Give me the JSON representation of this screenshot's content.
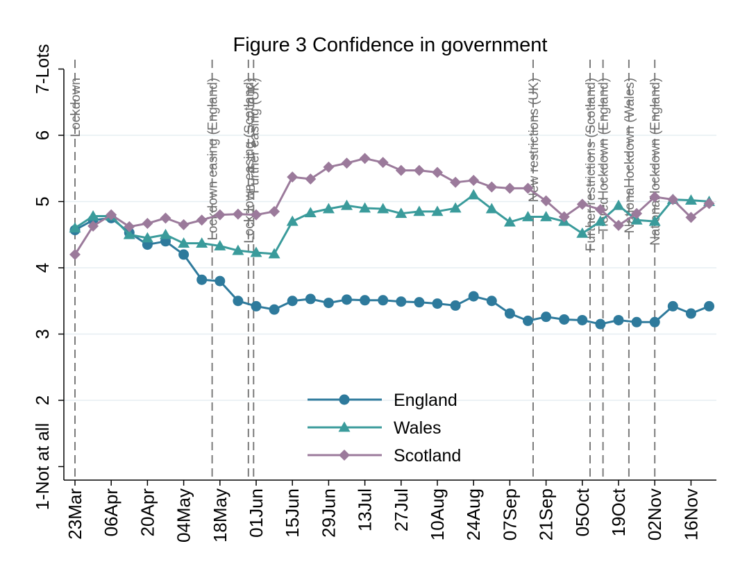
{
  "chart_data": {
    "type": "line",
    "title": "Figure 3 Confidence in government",
    "xlabel": "",
    "ylabel": "",
    "x_ticks": [
      {
        "day": 0,
        "label": "23Mar"
      },
      {
        "day": 14,
        "label": "06Apr"
      },
      {
        "day": 28,
        "label": "20Apr"
      },
      {
        "day": 42,
        "label": "04May"
      },
      {
        "day": 56,
        "label": "18May"
      },
      {
        "day": 70,
        "label": "01Jun"
      },
      {
        "day": 84,
        "label": "15Jun"
      },
      {
        "day": 98,
        "label": "29Jun"
      },
      {
        "day": 112,
        "label": "13Jul"
      },
      {
        "day": 126,
        "label": "27Jul"
      },
      {
        "day": 140,
        "label": "10Aug"
      },
      {
        "day": 154,
        "label": "24Aug"
      },
      {
        "day": 168,
        "label": "07Sep"
      },
      {
        "day": 182,
        "label": "21Sep"
      },
      {
        "day": 196,
        "label": "05Oct"
      },
      {
        "day": 210,
        "label": "19Oct"
      },
      {
        "day": 224,
        "label": "02Nov"
      },
      {
        "day": 238,
        "label": "16Nov"
      }
    ],
    "y_ticks": [
      {
        "value": 1,
        "label": "1-Not at all"
      },
      {
        "value": 2,
        "label": "2"
      },
      {
        "value": 3,
        "label": "3"
      },
      {
        "value": 4,
        "label": "4"
      },
      {
        "value": 5,
        "label": "5"
      },
      {
        "value": 6,
        "label": "6"
      },
      {
        "value": 7,
        "label": "7-Lots"
      }
    ],
    "xlim": [
      0,
      250
    ],
    "ylim": [
      1,
      7
    ],
    "grid": true,
    "legend_position": "bottom-center",
    "x": [
      0,
      7,
      14,
      21,
      28,
      35,
      42,
      49,
      56,
      63,
      70,
      77,
      84,
      91,
      98,
      105,
      112,
      119,
      126,
      133,
      140,
      147,
      154,
      161,
      168,
      175,
      182,
      189,
      196,
      203,
      210,
      217,
      224,
      231,
      238,
      245
    ],
    "series": [
      {
        "name": "England",
        "color": "#2e7a9c",
        "marker": "circle",
        "values": [
          4.57,
          4.72,
          4.75,
          4.53,
          4.35,
          4.4,
          4.2,
          3.82,
          3.8,
          3.5,
          3.42,
          3.37,
          3.5,
          3.53,
          3.47,
          3.52,
          3.51,
          3.51,
          3.49,
          3.48,
          3.46,
          3.43,
          3.57,
          3.5,
          3.31,
          3.2,
          3.26,
          3.22,
          3.21,
          3.15,
          3.21,
          3.18,
          3.18,
          3.42,
          3.31,
          3.42
        ]
      },
      {
        "name": "Wales",
        "color": "#3a9b9b",
        "marker": "triangle",
        "values": [
          4.6,
          4.78,
          4.78,
          4.5,
          4.45,
          4.5,
          4.37,
          4.37,
          4.33,
          4.26,
          4.23,
          4.21,
          4.7,
          4.83,
          4.89,
          4.94,
          4.9,
          4.89,
          4.82,
          4.85,
          4.85,
          4.9,
          5.1,
          4.89,
          4.69,
          4.77,
          4.77,
          4.7,
          4.52,
          4.7,
          4.94,
          4.72,
          4.7,
          5.03,
          5.02,
          5.0
        ]
      },
      {
        "name": "Scotland",
        "color": "#9b7a9b",
        "marker": "diamond",
        "values": [
          4.2,
          4.63,
          4.8,
          4.62,
          4.67,
          4.75,
          4.65,
          4.72,
          4.8,
          4.81,
          4.8,
          4.85,
          5.37,
          5.34,
          5.52,
          5.58,
          5.65,
          5.59,
          5.47,
          5.47,
          5.44,
          5.29,
          5.32,
          5.22,
          5.2,
          5.2,
          5.01,
          4.77,
          4.96,
          4.88,
          4.64,
          4.82,
          5.07,
          5.03,
          4.76,
          4.97
        ]
      }
    ],
    "events": [
      {
        "day": 0,
        "label": "Lockdown"
      },
      {
        "day": 53,
        "label": "Lockdown easing (England)"
      },
      {
        "day": 67,
        "label": "Lockdown easing (Scotland)"
      },
      {
        "day": 69,
        "label": "Further easing (UK)"
      },
      {
        "day": 177,
        "label": "New restrictions (UK)"
      },
      {
        "day": 199,
        "label": "Further restrictions (Scotland)"
      },
      {
        "day": 204,
        "label": "Tiered lockdown (England)"
      },
      {
        "day": 214,
        "label": "National lockdown (Wales)"
      },
      {
        "day": 224,
        "label": "National lockdown (England)"
      }
    ]
  }
}
